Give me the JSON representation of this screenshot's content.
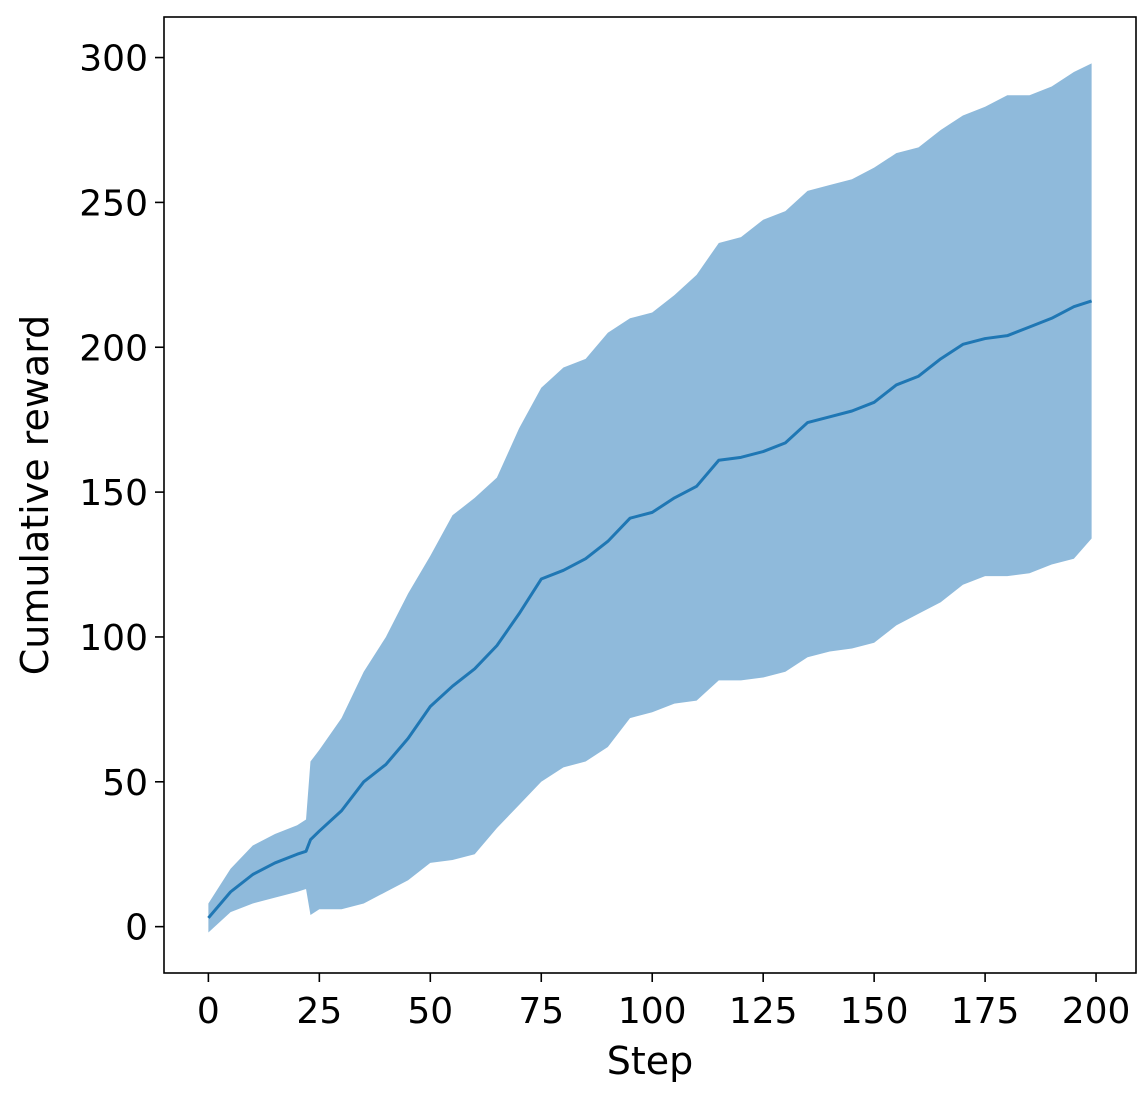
{
  "chart_data": {
    "type": "line",
    "title": "",
    "xlabel": "Step",
    "ylabel": "Cumulative reward",
    "xlim": [
      -10,
      209
    ],
    "ylim": [
      -16,
      314
    ],
    "xticks": [
      0,
      25,
      50,
      75,
      100,
      125,
      150,
      175,
      200
    ],
    "yticks": [
      0,
      50,
      100,
      150,
      200,
      250,
      300
    ],
    "grid": false,
    "legend": "none",
    "colors": {
      "line": "#1f77b4",
      "band": "#8fbadb",
      "axes": "#000000"
    },
    "series": [
      {
        "x": [
          0,
          5,
          10,
          15,
          20,
          22,
          23,
          25,
          30,
          35,
          40,
          45,
          50,
          55,
          60,
          65,
          70,
          75,
          80,
          85,
          90,
          95,
          100,
          105,
          110,
          115,
          120,
          125,
          130,
          135,
          140,
          145,
          150,
          155,
          160,
          165,
          170,
          175,
          180,
          185,
          190,
          195,
          199
        ],
        "y": [
          3,
          12,
          18,
          22,
          25,
          26,
          30,
          33,
          40,
          50,
          56,
          65,
          76,
          83,
          89,
          97,
          108,
          120,
          123,
          127,
          133,
          141,
          143,
          148,
          152,
          161,
          162,
          164,
          167,
          174,
          176,
          178,
          181,
          187,
          190,
          196,
          201,
          203,
          204,
          207,
          210,
          214,
          216
        ],
        "lower": [
          -2,
          5,
          8,
          10,
          12,
          13,
          4,
          6,
          6,
          8,
          12,
          16,
          22,
          23,
          25,
          34,
          42,
          50,
          55,
          57,
          62,
          72,
          74,
          77,
          78,
          85,
          85,
          86,
          88,
          93,
          95,
          96,
          98,
          104,
          108,
          112,
          118,
          121,
          121,
          122,
          125,
          127,
          134
        ],
        "upper": [
          8,
          20,
          28,
          32,
          35,
          37,
          57,
          61,
          72,
          88,
          100,
          115,
          128,
          142,
          148,
          155,
          172,
          186,
          193,
          196,
          205,
          210,
          212,
          218,
          225,
          236,
          238,
          244,
          247,
          254,
          256,
          258,
          262,
          267,
          269,
          275,
          280,
          283,
          287,
          287,
          290,
          295,
          298
        ]
      }
    ]
  }
}
